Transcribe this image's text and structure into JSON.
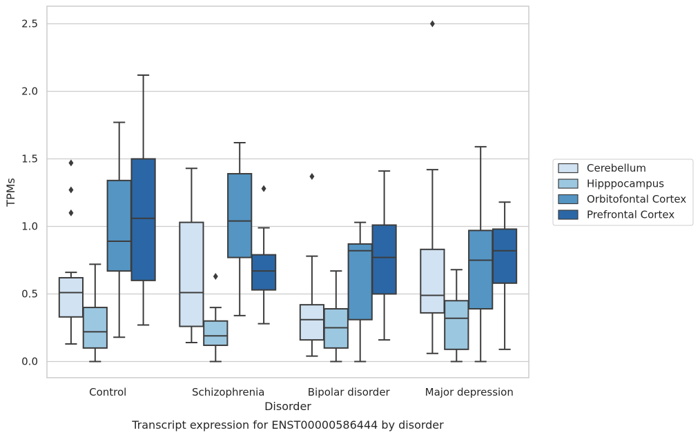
{
  "chart_data": {
    "type": "box",
    "title": "",
    "caption": "Transcript expression for ENST00000586444 by disorder",
    "xlabel": "Disorder",
    "ylabel": "TPMs",
    "ylim": [
      -0.12,
      2.63
    ],
    "yticks": [
      0.0,
      0.5,
      1.0,
      1.5,
      2.0,
      2.5
    ],
    "ytick_labels": [
      "0.0",
      "0.5",
      "1.0",
      "1.5",
      "2.0",
      "2.5"
    ],
    "grid": "horizontal",
    "legend_position": "right",
    "categories": [
      "Control",
      "Schizophrenia",
      "Bipolar disorder",
      "Major depression"
    ],
    "series": [
      {
        "name": "Cerebellum",
        "color": "#d1e2f2",
        "boxes": [
          {
            "whisker_low": 0.13,
            "q1": 0.33,
            "median": 0.51,
            "q3": 0.62,
            "whisker_high": 0.66,
            "outliers": [
              1.1,
              1.27,
              1.47
            ]
          },
          {
            "whisker_low": 0.14,
            "q1": 0.26,
            "median": 0.51,
            "q3": 1.03,
            "whisker_high": 1.43,
            "outliers": []
          },
          {
            "whisker_low": 0.04,
            "q1": 0.16,
            "median": 0.31,
            "q3": 0.42,
            "whisker_high": 0.78,
            "outliers": [
              1.37
            ]
          },
          {
            "whisker_low": 0.06,
            "q1": 0.36,
            "median": 0.49,
            "q3": 0.83,
            "whisker_high": 1.42,
            "outliers": [
              2.5
            ]
          }
        ]
      },
      {
        "name": "Hipppocampus",
        "color": "#9cc7e0",
        "boxes": [
          {
            "whisker_low": 0.0,
            "q1": 0.1,
            "median": 0.22,
            "q3": 0.4,
            "whisker_high": 0.72,
            "outliers": []
          },
          {
            "whisker_low": 0.0,
            "q1": 0.12,
            "median": 0.19,
            "q3": 0.3,
            "whisker_high": 0.4,
            "outliers": [
              0.63
            ]
          },
          {
            "whisker_low": 0.0,
            "q1": 0.1,
            "median": 0.25,
            "q3": 0.39,
            "whisker_high": 0.67,
            "outliers": []
          },
          {
            "whisker_low": 0.0,
            "q1": 0.09,
            "median": 0.32,
            "q3": 0.45,
            "whisker_high": 0.68,
            "outliers": []
          }
        ]
      },
      {
        "name": "Orbitofontal Cortex",
        "color": "#5495c3",
        "boxes": [
          {
            "whisker_low": 0.18,
            "q1": 0.67,
            "median": 0.89,
            "q3": 1.34,
            "whisker_high": 1.77,
            "outliers": []
          },
          {
            "whisker_low": 0.34,
            "q1": 0.77,
            "median": 1.04,
            "q3": 1.39,
            "whisker_high": 1.62,
            "outliers": []
          },
          {
            "whisker_low": 0.0,
            "q1": 0.31,
            "median": 0.82,
            "q3": 0.87,
            "whisker_high": 1.03,
            "outliers": []
          },
          {
            "whisker_low": 0.0,
            "q1": 0.39,
            "median": 0.75,
            "q3": 0.97,
            "whisker_high": 1.59,
            "outliers": []
          }
        ]
      },
      {
        "name": "Prefrontal Cortex",
        "color": "#2b67a6",
        "boxes": [
          {
            "whisker_low": 0.27,
            "q1": 0.6,
            "median": 1.06,
            "q3": 1.5,
            "whisker_high": 2.12,
            "outliers": []
          },
          {
            "whisker_low": 0.28,
            "q1": 0.53,
            "median": 0.67,
            "q3": 0.79,
            "whisker_high": 0.99,
            "outliers": [
              1.28
            ]
          },
          {
            "whisker_low": 0.16,
            "q1": 0.5,
            "median": 0.77,
            "q3": 1.01,
            "whisker_high": 1.41,
            "outliers": []
          },
          {
            "whisker_low": 0.09,
            "q1": 0.58,
            "median": 0.82,
            "q3": 0.98,
            "whisker_high": 1.18,
            "outliers": []
          }
        ]
      }
    ]
  }
}
